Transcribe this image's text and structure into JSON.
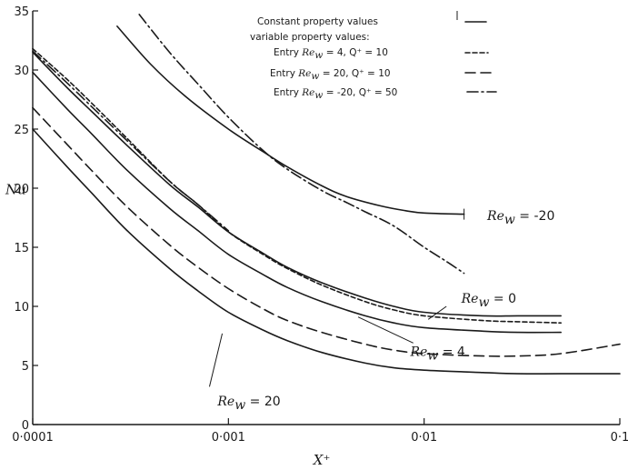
{
  "chart_data": {
    "type": "line",
    "x_scale": "log",
    "xlabel": "X⁺",
    "ylabel": "Nu",
    "xlim": [
      0.0001,
      0.1
    ],
    "ylim": [
      0,
      35
    ],
    "grid": false,
    "x_ticks": [
      {
        "value": 0.0001,
        "label": "0·0001"
      },
      {
        "value": 0.001,
        "label": "0·001"
      },
      {
        "value": 0.01,
        "label": "0·01"
      },
      {
        "value": 0.1,
        "label": "0·1"
      }
    ],
    "y_ticks": [
      {
        "value": 0,
        "label": "0"
      },
      {
        "value": 5,
        "label": "5"
      },
      {
        "value": 10,
        "label": "10"
      },
      {
        "value": 15,
        "label": "15"
      },
      {
        "value": 20,
        "label": "20"
      },
      {
        "value": 25,
        "label": "25"
      },
      {
        "value": 30,
        "label": "30"
      },
      {
        "value": 35,
        "label": "35"
      }
    ],
    "legend": {
      "position": "top-right",
      "entries": [
        {
          "text": "Constant property values",
          "style": "solid"
        },
        {
          "text": "variable property values:",
          "style": "none"
        },
        {
          "prefix": "Entry",
          "re": "Re",
          "re_sub": "w",
          "params": " = 4,  Q⁺ = 10",
          "style": "dash-short"
        },
        {
          "prefix": "Entry",
          "re": "Re",
          "re_sub": "w",
          "params": " = 20,  Q⁺ = 10",
          "style": "dash-long"
        },
        {
          "prefix": "Entry",
          "re": "Re",
          "re_sub": "w",
          "params": " = -20, Q⁺ = 50",
          "style": "dash-dot"
        }
      ]
    },
    "series": [
      {
        "label_re": "Re",
        "label_sub": "w",
        "label_val": " = -20",
        "group": "constant",
        "style": "solid",
        "x": [
          0.00027,
          0.0004,
          0.0006,
          0.001,
          0.0015,
          0.002,
          0.003,
          0.004,
          0.006,
          0.008,
          0.01,
          0.016
        ],
        "y": [
          33.7,
          30.5,
          27.8,
          25.0,
          23.1,
          21.8,
          20.2,
          19.3,
          18.5,
          18.1,
          17.9,
          17.8
        ]
      },
      {
        "label_re": "Re",
        "label_sub": "w",
        "label_val": " = 0",
        "group": "constant",
        "style": "solid",
        "x": [
          0.0001,
          0.00015,
          0.0002,
          0.0003,
          0.0005,
          0.0007,
          0.001,
          0.0015,
          0.002,
          0.003,
          0.005,
          0.007,
          0.01,
          0.02,
          0.03,
          0.05
        ],
        "y": [
          31.5,
          28.5,
          26.5,
          23.7,
          20.3,
          18.4,
          16.3,
          14.5,
          13.3,
          12.0,
          10.7,
          10.0,
          9.5,
          9.2,
          9.2,
          9.2
        ]
      },
      {
        "label_re": "Re",
        "label_sub": "w",
        "label_val": " = 4",
        "group": "constant",
        "style": "solid",
        "x": [
          0.0001,
          0.00015,
          0.0002,
          0.0003,
          0.0005,
          0.0007,
          0.001,
          0.0015,
          0.002,
          0.003,
          0.005,
          0.007,
          0.01,
          0.02,
          0.03,
          0.05
        ],
        "y": [
          29.8,
          26.7,
          24.6,
          21.6,
          18.3,
          16.4,
          14.4,
          12.7,
          11.6,
          10.4,
          9.2,
          8.6,
          8.2,
          7.9,
          7.8,
          7.8
        ]
      },
      {
        "label_re": "Re",
        "label_sub": "w",
        "label_val": " = 20",
        "group": "constant",
        "style": "solid",
        "x": [
          0.0001,
          0.00015,
          0.0002,
          0.0003,
          0.0005,
          0.0007,
          0.001,
          0.0015,
          0.002,
          0.003,
          0.005,
          0.007,
          0.01,
          0.02,
          0.03,
          0.05,
          0.1
        ],
        "y": [
          25.0,
          21.8,
          19.6,
          16.5,
          13.2,
          11.3,
          9.5,
          8.0,
          7.1,
          6.1,
          5.2,
          4.8,
          4.6,
          4.4,
          4.3,
          4.3,
          4.3
        ]
      },
      {
        "group": "variable",
        "style": "dash-short",
        "entry": "Entry Rew = 4, Q+ = 10",
        "x": [
          0.0001,
          0.00015,
          0.0002,
          0.0003,
          0.0005,
          0.0007,
          0.001,
          0.0015,
          0.002,
          0.003,
          0.005,
          0.007,
          0.01,
          0.02,
          0.03,
          0.05
        ],
        "y": [
          31.8,
          29.2,
          27.2,
          24.3,
          20.6,
          18.6,
          16.3,
          14.4,
          13.2,
          11.8,
          10.4,
          9.7,
          9.2,
          8.8,
          8.7,
          8.6
        ]
      },
      {
        "group": "variable",
        "style": "dash-long",
        "entry": "Entry Rew = 20, Q+ = 10",
        "x": [
          0.0001,
          0.00015,
          0.0002,
          0.0003,
          0.0005,
          0.0007,
          0.001,
          0.0015,
          0.002,
          0.003,
          0.005,
          0.007,
          0.01,
          0.02,
          0.03,
          0.05,
          0.1
        ],
        "y": [
          26.8,
          23.7,
          21.5,
          18.5,
          15.2,
          13.3,
          11.5,
          9.8,
          8.8,
          7.8,
          6.8,
          6.3,
          6.0,
          5.8,
          5.8,
          6.0,
          6.8
        ]
      },
      {
        "group": "variable",
        "style": "dash-dot",
        "entry": "Entry Rew = -20, Q+ = 50",
        "x": [
          0.00035,
          0.0005,
          0.0007,
          0.001,
          0.0015,
          0.002,
          0.003,
          0.004,
          0.005,
          0.007,
          0.01,
          0.013,
          0.016
        ],
        "y": [
          34.7,
          31.5,
          28.8,
          26.0,
          23.2,
          21.6,
          19.8,
          18.8,
          18.0,
          16.8,
          15.0,
          13.8,
          12.8
        ]
      },
      {
        "group": "variable",
        "style": "dash-dot",
        "entry": "Entry Rew = -20, Q+ = 50",
        "x": [
          0.0001,
          0.00015,
          0.0002,
          0.0003,
          0.0005,
          0.0007,
          0.001
        ],
        "y": [
          31.6,
          28.9,
          26.9,
          24.1,
          20.6,
          18.6,
          16.4
        ]
      }
    ]
  }
}
